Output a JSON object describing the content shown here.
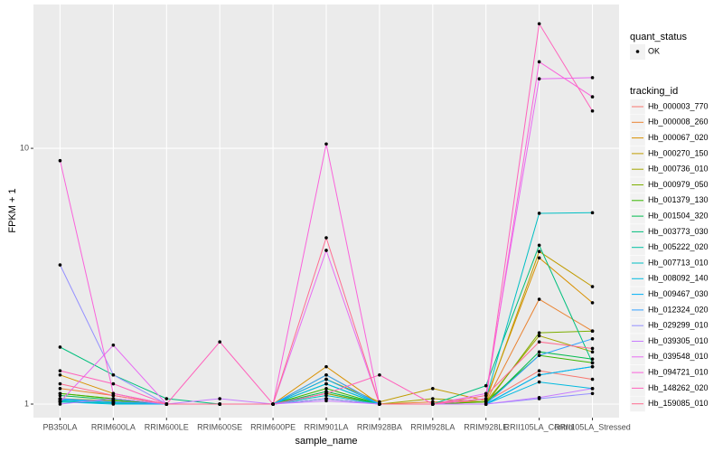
{
  "chart_data": {
    "type": "line",
    "x_label": "sample_name",
    "y_label": "FPKM + 1",
    "log_scale_y": true,
    "grid": true,
    "categories": [
      "PB350LA",
      "RRIM600LA",
      "RRIM600LE",
      "RRIM600SE",
      "RRIM600PE",
      "RRIM901LA",
      "RRIM928BA",
      "RRIM928LA",
      "RRIM928LE",
      "RRII105LA_Control",
      "RRII105LA_Stressed"
    ],
    "ylim": [
      0.885,
      36.5
    ],
    "yticks": [
      1,
      10
    ],
    "point_legend_title": "quant_status",
    "point_legend": [
      "OK"
    ],
    "point_color": "#000000",
    "legend_title": "tracking_id",
    "legend_position": "right",
    "series": [
      {
        "name": "Hb_000003_770",
        "color": "#F8766D",
        "values": [
          1.05,
          1.02,
          1.0,
          1.0,
          1.0,
          1.05,
          1.0,
          1.0,
          1.02,
          1.35,
          1.25
        ]
      },
      {
        "name": "Hb_000008_260",
        "color": "#EA8331",
        "values": [
          1.15,
          1.08,
          1.0,
          1.0,
          1.0,
          1.1,
          1.0,
          1.02,
          1.02,
          2.57,
          1.93
        ]
      },
      {
        "name": "Hb_000067_020",
        "color": "#D89000",
        "values": [
          1.3,
          1.1,
          1.0,
          1.0,
          1.0,
          1.4,
          1.0,
          1.0,
          1.05,
          3.73,
          2.49
        ]
      },
      {
        "name": "Hb_000270_150",
        "color": "#C09B00",
        "values": [
          1.1,
          1.05,
          1.0,
          1.0,
          1.0,
          1.25,
          1.02,
          1.15,
          1.03,
          3.95,
          2.88
        ]
      },
      {
        "name": "Hb_000736_010",
        "color": "#A3A500",
        "values": [
          1.05,
          1.03,
          1.0,
          1.0,
          1.0,
          1.3,
          1.0,
          1.05,
          1.02,
          1.85,
          1.6
        ]
      },
      {
        "name": "Hb_000979_050",
        "color": "#7CAE00",
        "values": [
          1.02,
          1.01,
          1.0,
          1.0,
          1.0,
          1.1,
          1.0,
          1.0,
          1.0,
          1.9,
          1.93
        ]
      },
      {
        "name": "Hb_001379_130",
        "color": "#39B600",
        "values": [
          1.1,
          1.05,
          1.0,
          1.0,
          1.0,
          1.15,
          1.0,
          1.0,
          1.02,
          1.55,
          1.45
        ]
      },
      {
        "name": "Hb_001504_320",
        "color": "#00BB4E",
        "values": [
          1.08,
          1.04,
          1.0,
          1.0,
          1.0,
          1.12,
          1.0,
          1.0,
          1.0,
          1.6,
          1.5
        ]
      },
      {
        "name": "Hb_003773_030",
        "color": "#00BF7D",
        "values": [
          1.67,
          1.3,
          1.05,
          1.0,
          1.0,
          1.2,
          1.0,
          1.0,
          1.18,
          4.18,
          1.45
        ]
      },
      {
        "name": "Hb_005222_020",
        "color": "#00C1A3",
        "values": [
          1.03,
          1.01,
          1.0,
          1.0,
          1.0,
          1.05,
          1.0,
          1.0,
          1.0,
          1.3,
          1.4
        ]
      },
      {
        "name": "Hb_007713_010",
        "color": "#00BFC4",
        "values": [
          1.02,
          1.01,
          1.0,
          1.0,
          1.0,
          1.08,
          1.0,
          1.0,
          1.05,
          5.57,
          5.6
        ]
      },
      {
        "name": "Hb_008092_140",
        "color": "#00BAE0",
        "values": [
          1.02,
          1.0,
          1.0,
          1.0,
          1.0,
          1.2,
          1.0,
          1.0,
          1.0,
          1.22,
          1.15
        ]
      },
      {
        "name": "Hb_009467_030",
        "color": "#00B0F6",
        "values": [
          1.04,
          1.02,
          1.0,
          1.0,
          1.0,
          1.25,
          1.0,
          1.0,
          1.0,
          1.3,
          1.4
        ]
      },
      {
        "name": "Hb_012324_020",
        "color": "#35A2FF",
        "values": [
          1.05,
          1.02,
          1.0,
          1.0,
          1.0,
          1.3,
          1.0,
          1.0,
          1.0,
          1.55,
          1.8
        ]
      },
      {
        "name": "Hb_029299_010",
        "color": "#9590FF",
        "values": [
          3.5,
          1.3,
          1.0,
          1.0,
          1.0,
          1.05,
          1.0,
          1.0,
          1.0,
          1.05,
          1.1
        ]
      },
      {
        "name": "Hb_039305_010",
        "color": "#C77CFF",
        "values": [
          1.0,
          1.05,
          1.0,
          1.05,
          1.0,
          1.03,
          1.0,
          1.0,
          1.0,
          1.06,
          1.15
        ]
      },
      {
        "name": "Hb_039548_010",
        "color": "#E76BF3",
        "values": [
          1.02,
          1.7,
          1.0,
          1.0,
          1.0,
          3.99,
          1.0,
          1.0,
          1.1,
          18.7,
          18.9
        ]
      },
      {
        "name": "Hb_094721_010",
        "color": "#FA62DB",
        "values": [
          8.95,
          1.1,
          1.0,
          1.0,
          1.0,
          10.4,
          1.0,
          1.0,
          1.05,
          21.8,
          15.9
        ]
      },
      {
        "name": "Hb_148262_020",
        "color": "#FF62BC",
        "values": [
          1.35,
          1.2,
          1.0,
          1.75,
          1.0,
          1.1,
          1.3,
          1.0,
          1.05,
          30.7,
          14.0
        ]
      },
      {
        "name": "Hb_159085_010",
        "color": "#FF6C91",
        "values": [
          1.2,
          1.08,
          1.0,
          1.0,
          1.0,
          4.47,
          1.0,
          1.0,
          1.08,
          1.75,
          1.65
        ]
      }
    ]
  }
}
